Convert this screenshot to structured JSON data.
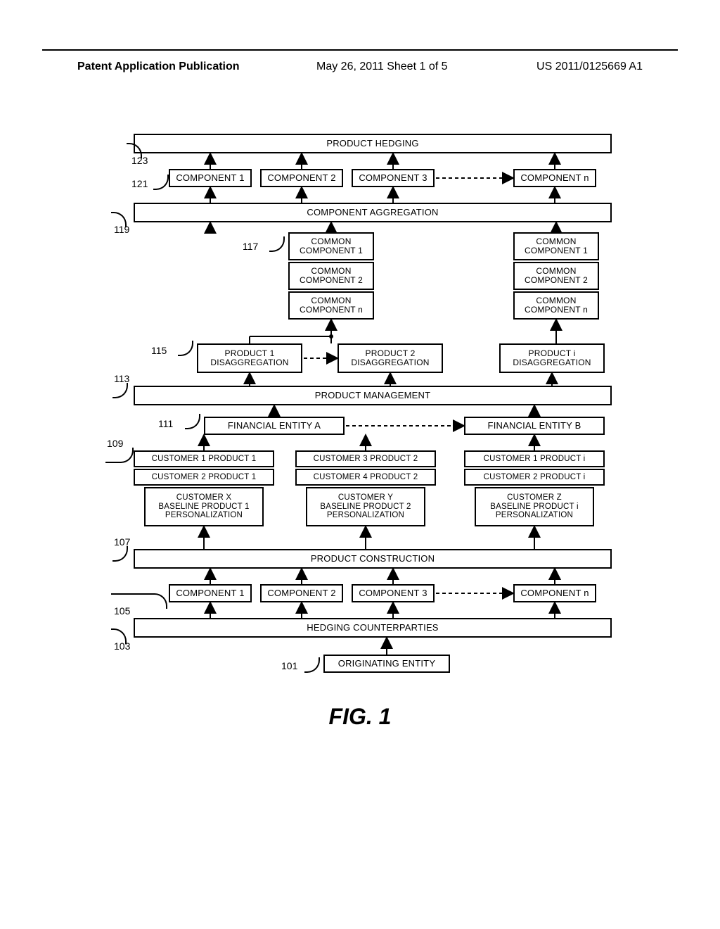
{
  "header": {
    "left": "Patent Application Publication",
    "mid": "May 26, 2011  Sheet 1 of 5",
    "right": "US 2011/0125669 A1"
  },
  "figure_label": "FIG. 1",
  "refs": {
    "r101": "101",
    "r103": "103",
    "r105": "105",
    "r107": "107",
    "r109": "109",
    "r111": "111",
    "r113": "113",
    "r115": "115",
    "r117": "117",
    "r119": "119",
    "r121": "121",
    "r123": "123"
  },
  "rows": {
    "product_hedging": "PRODUCT HEDGING",
    "components_top": {
      "c1": "COMPONENT 1",
      "c2": "COMPONENT 2",
      "c3": "COMPONENT 3",
      "cn": "COMPONENT n"
    },
    "component_aggregation": "COMPONENT AGGREGATION",
    "common_stack_a": {
      "c1": "COMMON\nCOMPONENT 1",
      "c2": "COMMON\nCOMPONENT 2",
      "cn": "COMMON\nCOMPONENT n"
    },
    "common_stack_b": {
      "c1": "COMMON\nCOMPONENT 1",
      "c2": "COMMON\nCOMPONENT 2",
      "cn": "COMMON\nCOMPONENT n"
    },
    "disagg": {
      "p1": "PRODUCT 1\nDISAGGREGATION",
      "p2": "PRODUCT 2\nDISAGGREGATION",
      "pi": "PRODUCT i\nDISAGGREGATION"
    },
    "product_management": "PRODUCT MANAGEMENT",
    "entities": {
      "a": "FINANCIAL ENTITY A",
      "b": "FINANCIAL ENTITY B"
    },
    "customer_col1": {
      "r1": "CUSTOMER 1 PRODUCT 1",
      "r2": "CUSTOMER 2 PRODUCT 1",
      "r3": "CUSTOMER X\nBASELINE PRODUCT 1\nPERSONALIZATION"
    },
    "customer_col2": {
      "r1": "CUSTOMER 3 PRODUCT 2",
      "r2": "CUSTOMER 4 PRODUCT 2",
      "r3": "CUSTOMER Y\nBASELINE PRODUCT 2\nPERSONALIZATION"
    },
    "customer_col3": {
      "r1": "CUSTOMER 1 PRODUCT i",
      "r2": "CUSTOMER 2 PRODUCT i",
      "r3": "CUSTOMER Z\nBASELINE PRODUCT i\nPERSONALIZATION"
    },
    "product_construction": "PRODUCT CONSTRUCTION",
    "components_bot": {
      "c1": "COMPONENT 1",
      "c2": "COMPONENT 2",
      "c3": "COMPONENT 3",
      "cn": "COMPONENT n"
    },
    "hedging_counterparties": "HEDGING COUNTERPARTIES",
    "originating_entity": "ORIGINATING ENTITY"
  },
  "layout": {
    "diagram_width": 680,
    "diagram_height": 860,
    "colors": {
      "line": "#000000",
      "bg": "#ffffff",
      "text": "#000000"
    },
    "font_size_box": 13,
    "font_size_small": 12,
    "font_size_ref": 14
  }
}
